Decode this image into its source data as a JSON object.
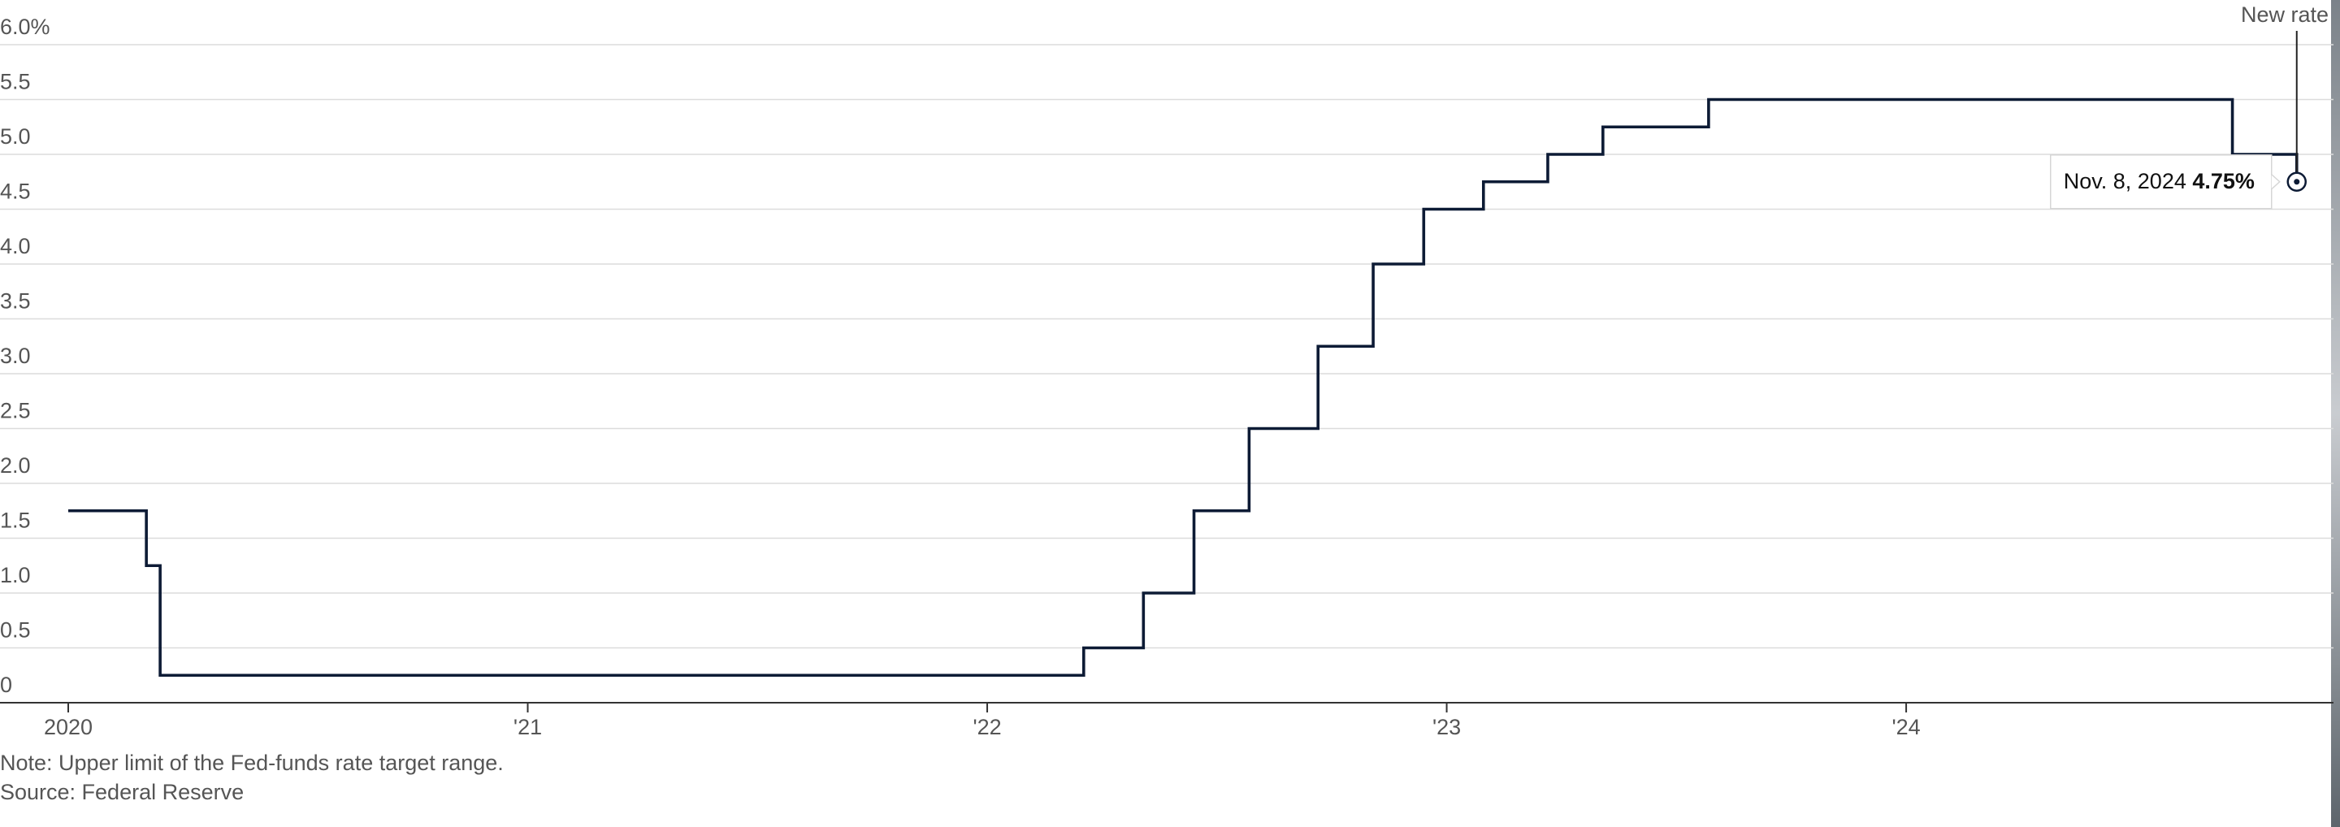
{
  "chart_data": {
    "type": "step",
    "x": [
      2020.0,
      2020.17,
      2020.2,
      2022.21,
      2022.34,
      2022.45,
      2022.57,
      2022.72,
      2022.84,
      2022.95,
      2023.08,
      2023.22,
      2023.34,
      2023.57,
      2024.71,
      2024.85
    ],
    "values": [
      1.75,
      1.25,
      0.25,
      0.5,
      1,
      1.75,
      2.5,
      3.25,
      4,
      4.5,
      4.75,
      5,
      5.25,
      5.5,
      5,
      4.75
    ],
    "value_labels": [
      null,
      null,
      null,
      null,
      null,
      null,
      null,
      null,
      null,
      null,
      null,
      null,
      null,
      null,
      null,
      "4.75%"
    ],
    "color": "#0d1b35",
    "xlim": [
      2020,
      2024.93
    ],
    "xticks": [
      2020,
      {
        "value": 2021,
        "label": "'21"
      },
      {
        "value": 2022,
        "label": "'22"
      },
      {
        "value": 2023,
        "label": "'23"
      },
      {
        "value": 2024,
        "label": "'24"
      }
    ],
    "ylim": [
      0,
      6
    ],
    "yticks": [
      0,
      0.5,
      {
        "value": 1,
        "label": "1.0"
      },
      1.5,
      {
        "value": 2,
        "label": "2.0"
      },
      2.5,
      {
        "value": 3,
        "label": "3.0"
      },
      3.5,
      {
        "value": 4,
        "label": "4.0"
      },
      4.5,
      {
        "value": 5,
        "label": "5.0"
      },
      5.5,
      {
        "value": 6,
        "label": "6.0%"
      }
    ],
    "grid": true,
    "annotation": "New rate",
    "tooltip_date": "Nov. 8, 2024",
    "note": "Note: Upper limit of the Fed-funds rate target range.",
    "source": "Source: Federal Reserve"
  }
}
